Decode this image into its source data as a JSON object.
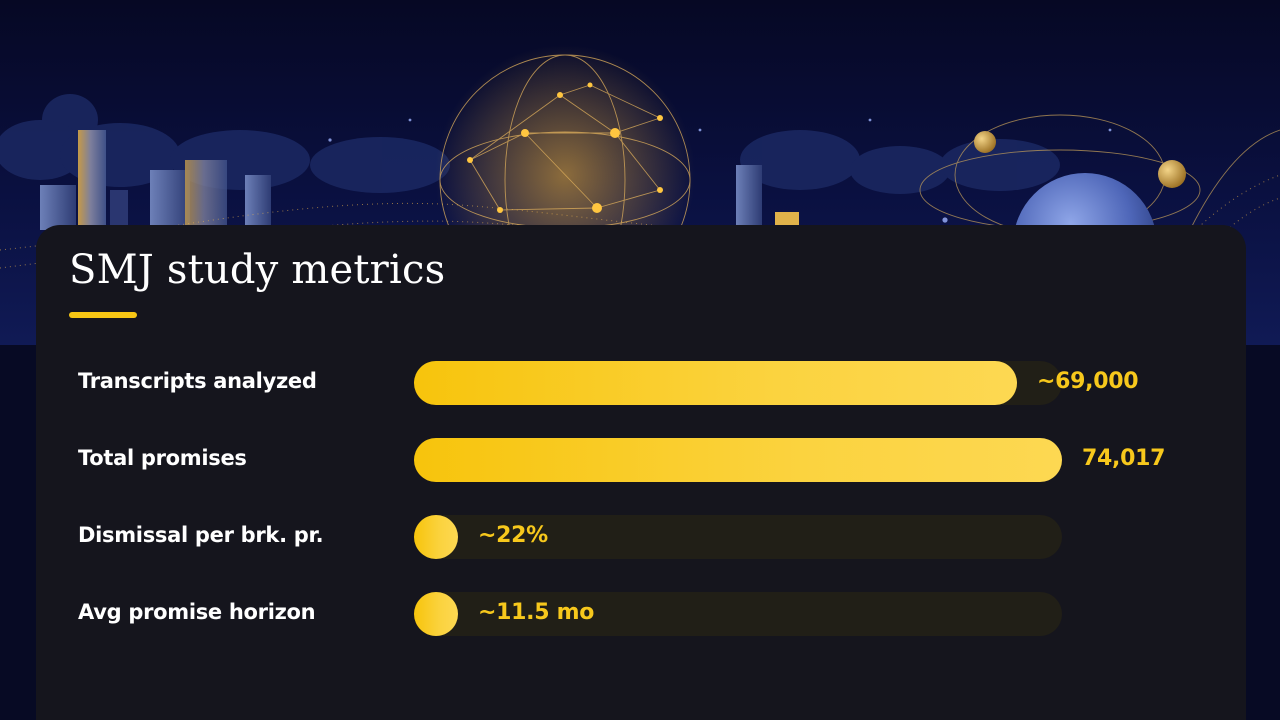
{
  "card": {
    "title": "SMJ study metrics"
  },
  "colors": {
    "background": "#070a24",
    "card": "#15151d",
    "accent": "#f7c614",
    "track": "#211f17",
    "label": "#ffffff",
    "value": "#f7c81c"
  },
  "chart_data": {
    "type": "bar",
    "orientation": "horizontal",
    "title": "SMJ study metrics",
    "categories": [
      "Transcripts analyzed",
      "Total promises",
      "Dismissal per brk. pr.",
      "Avg promise horizon"
    ],
    "values": [
      69000,
      74017,
      22,
      11.5
    ],
    "value_labels": [
      "~69,000",
      "74,017",
      "~22%",
      "~11.5 mo"
    ],
    "fill_fraction": [
      0.93,
      1.0,
      0.0,
      0.0
    ],
    "grid": false
  }
}
